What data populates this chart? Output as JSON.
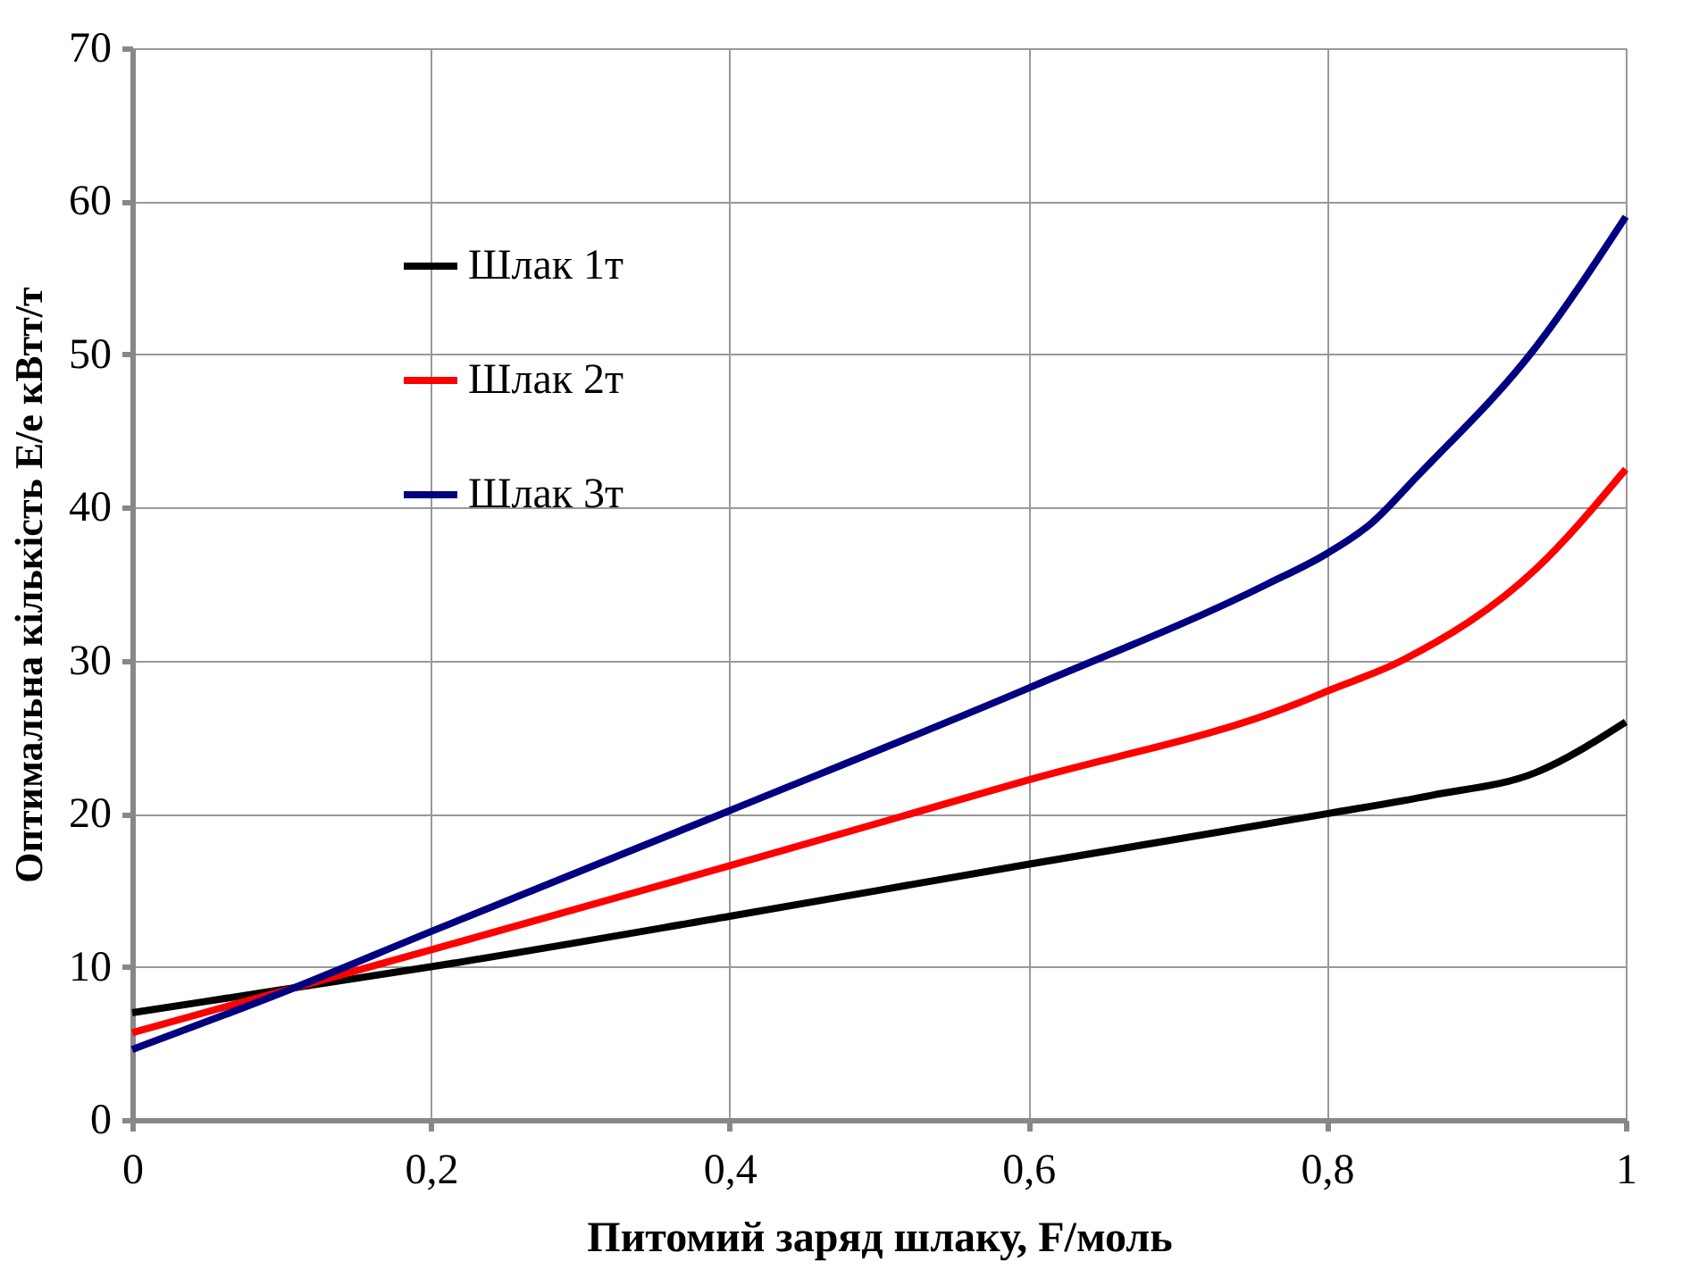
{
  "chart_data": {
    "type": "line",
    "xlabel": "Питомий заряд шлаку, F/моль",
    "ylabel": "Оптимальна кількість Е/е кВтт/т",
    "series": [
      {
        "name": "Шлак 1т",
        "color": "#000000",
        "x": [
          0,
          0.1,
          0.2,
          0.4,
          0.6,
          0.8,
          0.87,
          0.94,
          1.0
        ],
        "values": [
          7.0,
          8.5,
          10,
          13.3,
          16.7,
          20,
          21.2,
          22.7,
          26
        ]
      },
      {
        "name": "Шлак 2т",
        "color": "#ff0000",
        "x": [
          0,
          0.1,
          0.2,
          0.4,
          0.6,
          0.78,
          0.8,
          0.85,
          0.94,
          1.0
        ],
        "values": [
          5.7,
          8.4,
          11.1,
          16.6,
          22.2,
          27.2,
          28,
          30,
          36,
          42.5
        ]
      },
      {
        "name": "Шлак 3т",
        "color": "#000080",
        "x": [
          0,
          0.1,
          0.2,
          0.4,
          0.6,
          0.76,
          0.8,
          0.83,
          0.86,
          0.94,
          1.0
        ],
        "values": [
          4.6,
          8.3,
          12.3,
          20.2,
          28.2,
          35,
          37,
          39,
          42,
          50.5,
          59
        ]
      }
    ],
    "xlim": [
      0,
      1
    ],
    "xticks": [
      0,
      {
        "value": 0.2,
        "label": "0,2"
      },
      {
        "value": 0.4,
        "label": "0,4"
      },
      {
        "value": 0.6,
        "label": "0,6"
      },
      {
        "value": 0.8,
        "label": "0,8"
      },
      1
    ],
    "ylim": [
      0,
      70
    ],
    "yticks": [
      0,
      10,
      20,
      30,
      40,
      50,
      60,
      70
    ],
    "grid": true,
    "legend": "top left",
    "marker": "none",
    "line_style": "solid"
  }
}
